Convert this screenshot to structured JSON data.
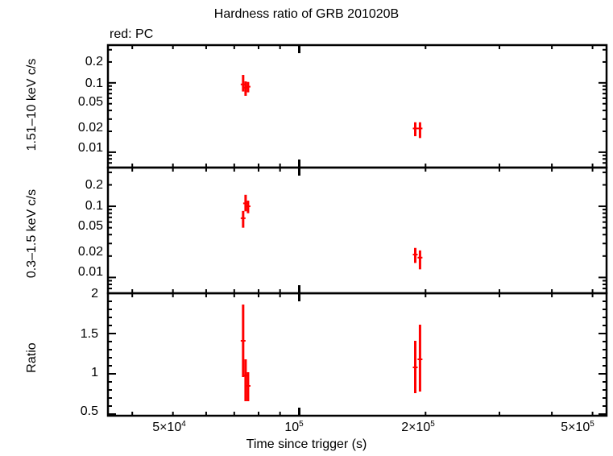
{
  "title": "Hardness ratio of GRB 201020B",
  "subtitle": "red: PC",
  "xlabel": "Time since trigger (s)",
  "colors": {
    "series": "#ff0000",
    "axes": "#000000",
    "background": "#ffffff"
  },
  "x_ticks": [
    {
      "label": "5×10",
      "exp": "4"
    },
    {
      "label": "10",
      "exp": "5"
    },
    {
      "label": "2×10",
      "exp": "5"
    },
    {
      "label": "5×10",
      "exp": "5"
    }
  ],
  "panels": {
    "hard": {
      "ylabel": "1.51–10 keV c/s",
      "ticks": [
        "0.2",
        "0.1",
        "0.05",
        "0.02",
        "0.01"
      ]
    },
    "soft": {
      "ylabel": "0.3–1.5 keV c/s",
      "ticks": [
        "0.2",
        "0.1",
        "0.05",
        "0.02",
        "0.01"
      ]
    },
    "ratio": {
      "ylabel": "Ratio",
      "ticks": [
        "2",
        "1.5",
        "1",
        "0.5"
      ]
    }
  },
  "chart_data": [
    {
      "type": "scatter",
      "title": "Hardness ratio of GRB 201020B",
      "subtitle": "red: PC",
      "panel": "1.51-10 keV count rate",
      "xlabel": "Time since trigger (s)",
      "ylabel": "1.51–10 keV c/s",
      "xscale": "log",
      "yscale": "log",
      "xlim": [
        35000,
        540000
      ],
      "ylim": [
        0.006,
        0.35
      ],
      "series": [
        {
          "name": "PC",
          "color": "#ff0000",
          "x": [
            73500,
            74500,
            75500,
            189000,
            194000
          ],
          "y": [
            0.095,
            0.085,
            0.088,
            0.022,
            0.022
          ],
          "yerr_low": [
            0.02,
            0.02,
            0.015,
            0.005,
            0.006
          ],
          "yerr_high": [
            0.035,
            0.02,
            0.015,
            0.005,
            0.005
          ]
        }
      ]
    },
    {
      "type": "scatter",
      "panel": "0.3-1.5 keV count rate",
      "xlabel": "Time since trigger (s)",
      "ylabel": "0.3–1.5 keV c/s",
      "xscale": "log",
      "yscale": "log",
      "xlim": [
        35000,
        540000
      ],
      "ylim": [
        0.006,
        0.35
      ],
      "series": [
        {
          "name": "PC",
          "color": "#ff0000",
          "x": [
            73500,
            74500,
            75500,
            189000,
            194000
          ],
          "y": [
            0.068,
            0.11,
            0.1,
            0.021,
            0.019
          ],
          "yerr_low": [
            0.018,
            0.025,
            0.02,
            0.005,
            0.006
          ],
          "yerr_high": [
            0.018,
            0.035,
            0.02,
            0.005,
            0.005
          ]
        }
      ]
    },
    {
      "type": "scatter",
      "panel": "Hardness ratio",
      "xlabel": "Time since trigger (s)",
      "ylabel": "Ratio",
      "xscale": "log",
      "yscale": "linear",
      "xlim": [
        35000,
        540000
      ],
      "ylim": [
        0.48,
        2.0
      ],
      "series": [
        {
          "name": "PC",
          "color": "#ff0000",
          "x": [
            73500,
            74500,
            75500,
            189000,
            194000
          ],
          "y": [
            1.41,
            0.98,
            0.85,
            1.08,
            1.18
          ],
          "yerr_low": [
            0.45,
            0.32,
            0.19,
            0.32,
            0.4
          ],
          "yerr_high": [
            0.45,
            0.2,
            0.17,
            0.33,
            0.43
          ]
        }
      ]
    }
  ]
}
